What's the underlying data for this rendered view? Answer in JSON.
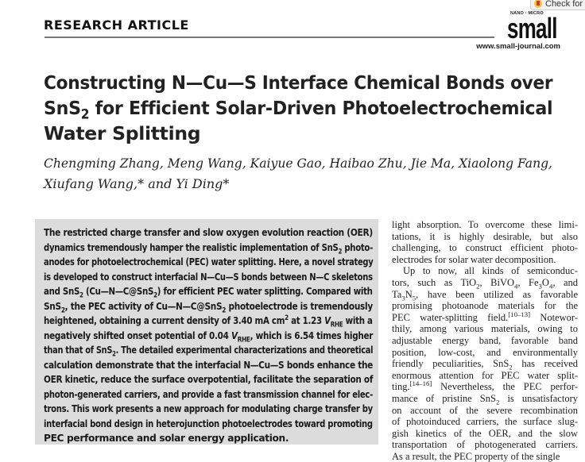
{
  "check_button": {
    "label": "Check for u"
  },
  "header": {
    "section": "RESEARCH ARTICLE",
    "journal_tagline": "NANO · MICRO",
    "journal_logo": "small",
    "journal_url": "www.small-journal.com"
  },
  "title_lines": [
    [
      {
        "t": "Constructing N—Cu—S Interface Chemical Bonds over"
      }
    ],
    [
      {
        "t": "SnS"
      },
      {
        "sub": "2"
      },
      {
        "t": " for Efficient Solar-Driven Photoelectrochemical"
      }
    ],
    [
      {
        "t": "Water Splitting"
      }
    ]
  ],
  "author_lines": [
    [
      {
        "t": "Chengming Zhang, Meng Wang, Kaiyue Gao, Haibao Zhu, Jie Ma, Xiaolong Fang,"
      }
    ],
    [
      {
        "t": "Xiufang Wang,* and Yi Ding*"
      }
    ]
  ],
  "abstract_lines": [
    [
      {
        "t": "The restricted charge transfer and slow oxygen evolution reaction (OER)"
      }
    ],
    [
      {
        "t": "dynamics tremendously hamper the realistic implementation of SnS"
      },
      {
        "sub": "2"
      },
      {
        "t": " photo-"
      }
    ],
    [
      {
        "t": "anodes for photoelectrochemical (PEC) water splitting. Here, a novel strategy"
      }
    ],
    [
      {
        "t": "is developed to construct interfacial N—Cu—S bonds between N—C skeletons"
      }
    ],
    [
      {
        "t": "and SnS"
      },
      {
        "sub": "2"
      },
      {
        "t": " (Cu—N—C@SnS"
      },
      {
        "sub": "2"
      },
      {
        "t": ") for efficient PEC water splitting. Compared with"
      }
    ],
    [
      {
        "t": "SnS"
      },
      {
        "sub": "2"
      },
      {
        "t": ", the PEC activity of Cu—N—C@SnS"
      },
      {
        "sub": "2"
      },
      {
        "t": " photoelectrode is tremendously"
      }
    ],
    [
      {
        "t": "heightened, obtaining a current density of 3.40 mA cm"
      },
      {
        "sup": "2"
      },
      {
        "t": " at 1.23 "
      },
      {
        "i": "V"
      },
      {
        "sub": "RHE"
      },
      {
        "t": " with a"
      }
    ],
    [
      {
        "t": "negatively shifted onset potential of 0.04 "
      },
      {
        "i": "V"
      },
      {
        "sub": "RHE"
      },
      {
        "t": ", which is 6.54 times higher"
      }
    ],
    [
      {
        "t": "than that of SnS"
      },
      {
        "sub": "2"
      },
      {
        "t": ". The detailed experimental characterizations and theoretical"
      }
    ],
    [
      {
        "t": "calculation demonstrate that the interfacial N—Cu—S bonds enhance the"
      }
    ],
    [
      {
        "t": "OER kinetic, reduce the surface overpotential, facilitate the separation of"
      }
    ],
    [
      {
        "t": "photon-generated carriers, and provide a fast transmission channel for elec-"
      }
    ],
    [
      {
        "t": "trons. This work presents a new approach for modulating charge transfer by"
      }
    ],
    [
      {
        "t": "interfacial bond design in heterojunction photoelectrodes toward promoting"
      }
    ],
    [
      {
        "t": "PEC performance and solar energy application."
      }
    ]
  ],
  "body_lines": [
    [
      {
        "t": "light absorption. To overcome these limi-"
      }
    ],
    [
      {
        "t": "tations, it is highly desirable, but also"
      }
    ],
    [
      {
        "t": "challenging, to construct efficient photo-"
      }
    ],
    [
      {
        "t": "electrodes for solar water decomposition."
      }
    ],
    [
      {
        "t": "Up to now, all kinds of semiconduc-"
      }
    ],
    [
      {
        "t": "tors, such as TiO"
      },
      {
        "sub": "2"
      },
      {
        "t": ", BiVO"
      },
      {
        "sub": "4"
      },
      {
        "t": ", Fe"
      },
      {
        "sub": "3"
      },
      {
        "t": "O"
      },
      {
        "sub": "4"
      },
      {
        "t": ", and"
      }
    ],
    [
      {
        "t": "Ta"
      },
      {
        "sub": "3"
      },
      {
        "t": "N"
      },
      {
        "sub": "5"
      },
      {
        "t": ", have been utilized as favorable"
      }
    ],
    [
      {
        "t": "promising photoanode materials for the"
      }
    ],
    [
      {
        "t": "PEC water-splitting field."
      },
      {
        "sup": "[10–13]"
      },
      {
        "t": " Notewor-"
      }
    ],
    [
      {
        "t": "thily, among various materials, owing to"
      }
    ],
    [
      {
        "t": "adjustable energy band, favorable band"
      }
    ],
    [
      {
        "t": "position, low-cost, and environmentally"
      }
    ],
    [
      {
        "t": "friendly peculiarities, SnS"
      },
      {
        "sub": "2"
      },
      {
        "t": " has received"
      }
    ],
    [
      {
        "t": "enormous attention for PEC water split-"
      }
    ],
    [
      {
        "t": "ting."
      },
      {
        "sup": "[14–16]"
      },
      {
        "t": " Nevertheless, the PEC perfor-"
      }
    ],
    [
      {
        "t": "mance of pristine SnS"
      },
      {
        "sub": "2"
      },
      {
        "t": " is unsatisfactory"
      }
    ],
    [
      {
        "t": "on account of the severe recombination"
      }
    ],
    [
      {
        "t": "of photoinduced carriers, the surface slug-"
      }
    ],
    [
      {
        "t": "gish kinetics of the OER, and the slow"
      }
    ],
    [
      {
        "t": "transportation of photogenerated carriers."
      }
    ],
    [
      {
        "t": "As a result, the PEC property of the single"
      }
    ]
  ]
}
